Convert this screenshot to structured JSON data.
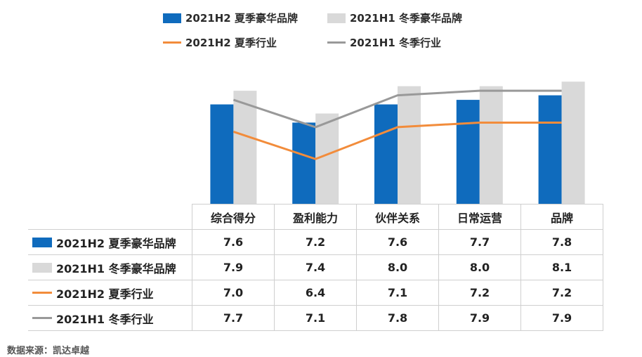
{
  "chart_data": {
    "type": "bar",
    "categories": [
      "综合得分",
      "盈利能力",
      "伙伴关系",
      "日常运营",
      "品牌"
    ],
    "ylim": [
      5.4,
      8.35
    ],
    "grid": false,
    "legend_position": "top",
    "series": [
      {
        "name": "2021H2 夏季豪华品牌",
        "kind": "bar",
        "color": "#0f6bbd",
        "values": [
          7.6,
          7.2,
          7.6,
          7.7,
          7.8
        ]
      },
      {
        "name": "2021H1 冬季豪华品牌",
        "kind": "bar",
        "color": "#d9d9d9",
        "values": [
          7.9,
          7.4,
          8.0,
          8.0,
          8.1
        ]
      },
      {
        "name": "2021H2 夏季行业",
        "kind": "line",
        "color": "#f28c3b",
        "values": [
          7.0,
          6.4,
          7.1,
          7.2,
          7.2
        ]
      },
      {
        "name": "2021H1 冬季行业",
        "kind": "line",
        "color": "#999999",
        "values": [
          7.7,
          7.1,
          7.8,
          7.9,
          7.9
        ]
      }
    ]
  },
  "source": "数据来源：凯达卓越"
}
